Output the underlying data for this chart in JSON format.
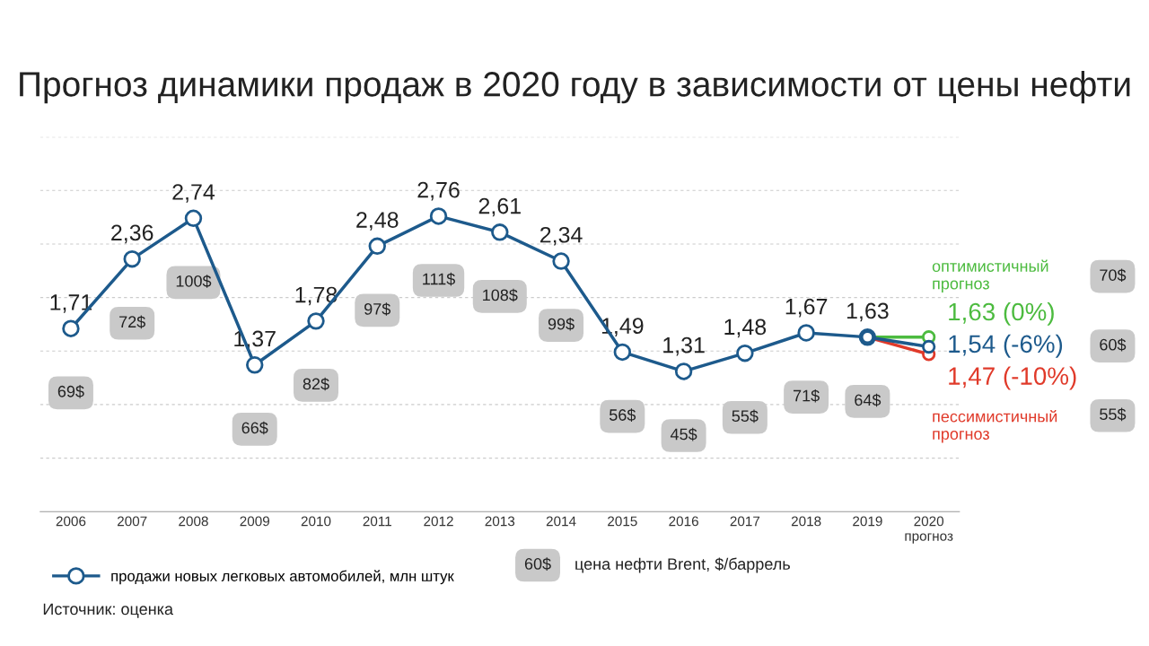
{
  "chart_data": {
    "type": "line",
    "title": "Прогноз динамики продаж в 2020 году в зависимости от цены нефти",
    "categories": [
      "2006",
      "2007",
      "2008",
      "2009",
      "2010",
      "2011",
      "2012",
      "2013",
      "2014",
      "2015",
      "2016",
      "2017",
      "2018",
      "2019",
      "2020\nпрогноз"
    ],
    "series": [
      {
        "name": "продажи новых легковых автомобилей, млн штук",
        "color": "#1d5a8c",
        "values": [
          1.71,
          2.36,
          2.74,
          1.37,
          1.78,
          2.48,
          2.76,
          2.61,
          2.34,
          1.49,
          1.31,
          1.48,
          1.67,
          1.63,
          null
        ],
        "value_labels": [
          "1,71",
          "2,36",
          "2,74",
          "1,37",
          "1,78",
          "2,48",
          "2,76",
          "2,61",
          "2,34",
          "1,49",
          "1,31",
          "1,48",
          "1,67",
          "1,63",
          null
        ]
      },
      {
        "name": "оптимистичный\nпрогноз",
        "color": "#4cbb3f",
        "values": [
          null,
          null,
          null,
          null,
          null,
          null,
          null,
          null,
          null,
          null,
          null,
          null,
          null,
          1.63,
          1.63
        ],
        "value_labels": [
          null,
          null,
          null,
          null,
          null,
          null,
          null,
          null,
          null,
          null,
          null,
          null,
          null,
          null,
          "1,63 (0%)"
        ]
      },
      {
        "color": "#1d5a8c",
        "values": [
          null,
          null,
          null,
          null,
          null,
          null,
          null,
          null,
          null,
          null,
          null,
          null,
          null,
          1.63,
          1.54
        ],
        "value_labels": [
          null,
          null,
          null,
          null,
          null,
          null,
          null,
          null,
          null,
          null,
          null,
          null,
          null,
          null,
          "1,54 (-6%)"
        ]
      },
      {
        "name": "пессимистичный\nпрогноз",
        "color": "#e03a2a",
        "values": [
          null,
          null,
          null,
          null,
          null,
          null,
          null,
          null,
          null,
          null,
          null,
          null,
          null,
          1.63,
          1.47
        ],
        "value_labels": [
          null,
          null,
          null,
          null,
          null,
          null,
          null,
          null,
          null,
          null,
          null,
          null,
          null,
          null,
          "1,47 (-10%)"
        ]
      }
    ],
    "ylim": [
      0,
      3.5
    ],
    "yticks": [
      {
        "value": 0.5,
        "label": null
      },
      {
        "value": 1.0,
        "label": null
      },
      {
        "value": 1.5,
        "label": null
      },
      {
        "value": 2.0,
        "label": null
      },
      {
        "value": 2.5,
        "label": null
      },
      {
        "value": 3.0,
        "label": null
      },
      {
        "value": 3.5,
        "label": null
      }
    ],
    "tick_labels": "x",
    "grid": "y",
    "marker": "circle",
    "legend": "bottom left",
    "annotations": [
      "60$",
      "цена нефти Brent, $/баррель",
      "Источник: оценка",
      "69$",
      "72$",
      "100$",
      "66$",
      "82$",
      "97$",
      "111$",
      "108$",
      "99$",
      "56$",
      "45$",
      "55$",
      "71$",
      "64$",
      "70$",
      "60$",
      "55$"
    ]
  }
}
